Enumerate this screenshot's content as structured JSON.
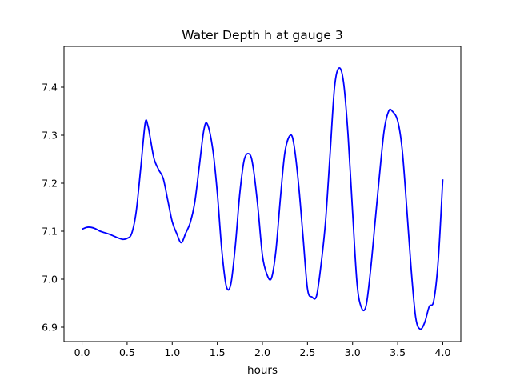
{
  "chart_data": {
    "type": "line",
    "title": "Water Depth h at gauge 3",
    "xlabel": "hours",
    "ylabel": "",
    "xlim": [
      -0.2,
      4.2
    ],
    "ylim": [
      6.87,
      7.485
    ],
    "xticks": [
      0.0,
      0.5,
      1.0,
      1.5,
      2.0,
      2.5,
      3.0,
      3.5,
      4.0
    ],
    "xtick_labels": [
      "0.0",
      "0.5",
      "1.0",
      "1.5",
      "2.0",
      "2.5",
      "3.0",
      "3.5",
      "4.0"
    ],
    "yticks": [
      6.9,
      7.0,
      7.1,
      7.2,
      7.3,
      7.4
    ],
    "ytick_labels": [
      "6.9",
      "7.0",
      "7.1",
      "7.2",
      "7.3",
      "7.4"
    ],
    "grid": false,
    "series": [
      {
        "color": "#0000ff",
        "x": [
          0.0,
          0.05,
          0.1,
          0.15,
          0.2,
          0.25,
          0.3,
          0.35,
          0.4,
          0.45,
          0.5,
          0.55,
          0.6,
          0.65,
          0.7,
          0.73,
          0.76,
          0.8,
          0.85,
          0.9,
          0.95,
          1.0,
          1.05,
          1.1,
          1.15,
          1.2,
          1.25,
          1.3,
          1.35,
          1.39,
          1.45,
          1.5,
          1.55,
          1.6,
          1.65,
          1.7,
          1.75,
          1.8,
          1.86,
          1.9,
          1.95,
          2.0,
          2.05,
          2.1,
          2.15,
          2.2,
          2.25,
          2.31,
          2.35,
          2.4,
          2.45,
          2.5,
          2.55,
          2.6,
          2.65,
          2.7,
          2.75,
          2.8,
          2.85,
          2.9,
          2.95,
          3.0,
          3.05,
          3.1,
          3.15,
          3.2,
          3.25,
          3.3,
          3.35,
          3.4,
          3.44,
          3.5,
          3.55,
          3.6,
          3.65,
          3.7,
          3.75,
          3.8,
          3.85,
          3.9,
          3.95,
          4.0
        ],
        "y": [
          7.104,
          7.108,
          7.108,
          7.105,
          7.1,
          7.097,
          7.094,
          7.09,
          7.086,
          7.083,
          7.085,
          7.095,
          7.14,
          7.23,
          7.325,
          7.32,
          7.29,
          7.25,
          7.228,
          7.21,
          7.165,
          7.12,
          7.095,
          7.076,
          7.096,
          7.118,
          7.16,
          7.235,
          7.31,
          7.323,
          7.27,
          7.18,
          7.06,
          6.985,
          6.99,
          7.07,
          7.18,
          7.25,
          7.26,
          7.23,
          7.15,
          7.05,
          7.01,
          7.002,
          7.06,
          7.17,
          7.265,
          7.3,
          7.28,
          7.2,
          7.09,
          6.98,
          6.963,
          6.965,
          7.03,
          7.12,
          7.26,
          7.4,
          7.44,
          7.41,
          7.3,
          7.14,
          6.99,
          6.94,
          6.945,
          7.02,
          7.12,
          7.22,
          7.31,
          7.35,
          7.35,
          7.33,
          7.27,
          7.15,
          7.02,
          6.92,
          6.896,
          6.91,
          6.943,
          6.955,
          7.04,
          7.208
        ]
      }
    ]
  }
}
